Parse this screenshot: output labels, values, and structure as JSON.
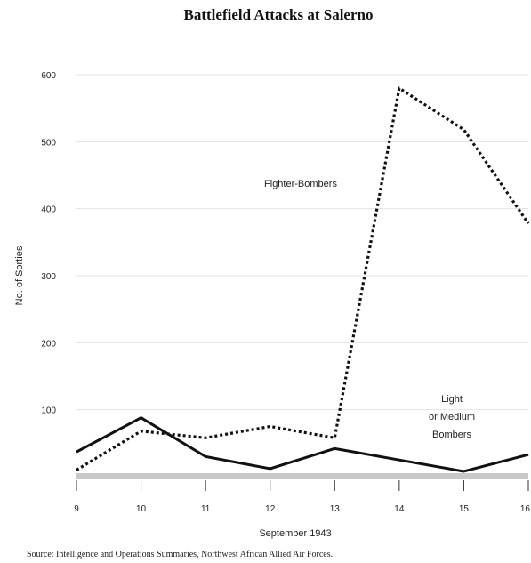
{
  "chart_data": {
    "type": "line",
    "title": "Battlefield Attacks at Salerno",
    "xlabel": "September 1943",
    "ylabel": "No. of Sorties",
    "x": [
      "9",
      "10",
      "11",
      "12",
      "13",
      "14",
      "15",
      "16"
    ],
    "xlim": [
      9,
      16
    ],
    "ylim": [
      0,
      600
    ],
    "yticks": [
      "100",
      "200",
      "300",
      "400",
      "500",
      "600"
    ],
    "grid": true,
    "series": [
      {
        "name": "Fighter-Bombers",
        "style": "dotted",
        "values": [
          10,
          68,
          58,
          75,
          58,
          580,
          518,
          378
        ]
      },
      {
        "name": "Light or Medium Bombers",
        "label_lines": [
          "Light",
          "or Medium",
          "Bombers"
        ],
        "style": "solid",
        "values": [
          37,
          88,
          30,
          12,
          42,
          25,
          8,
          33
        ]
      }
    ],
    "source": "Source: Intelligence and Operations Summaries, Northwest African Allied Air Forces."
  }
}
